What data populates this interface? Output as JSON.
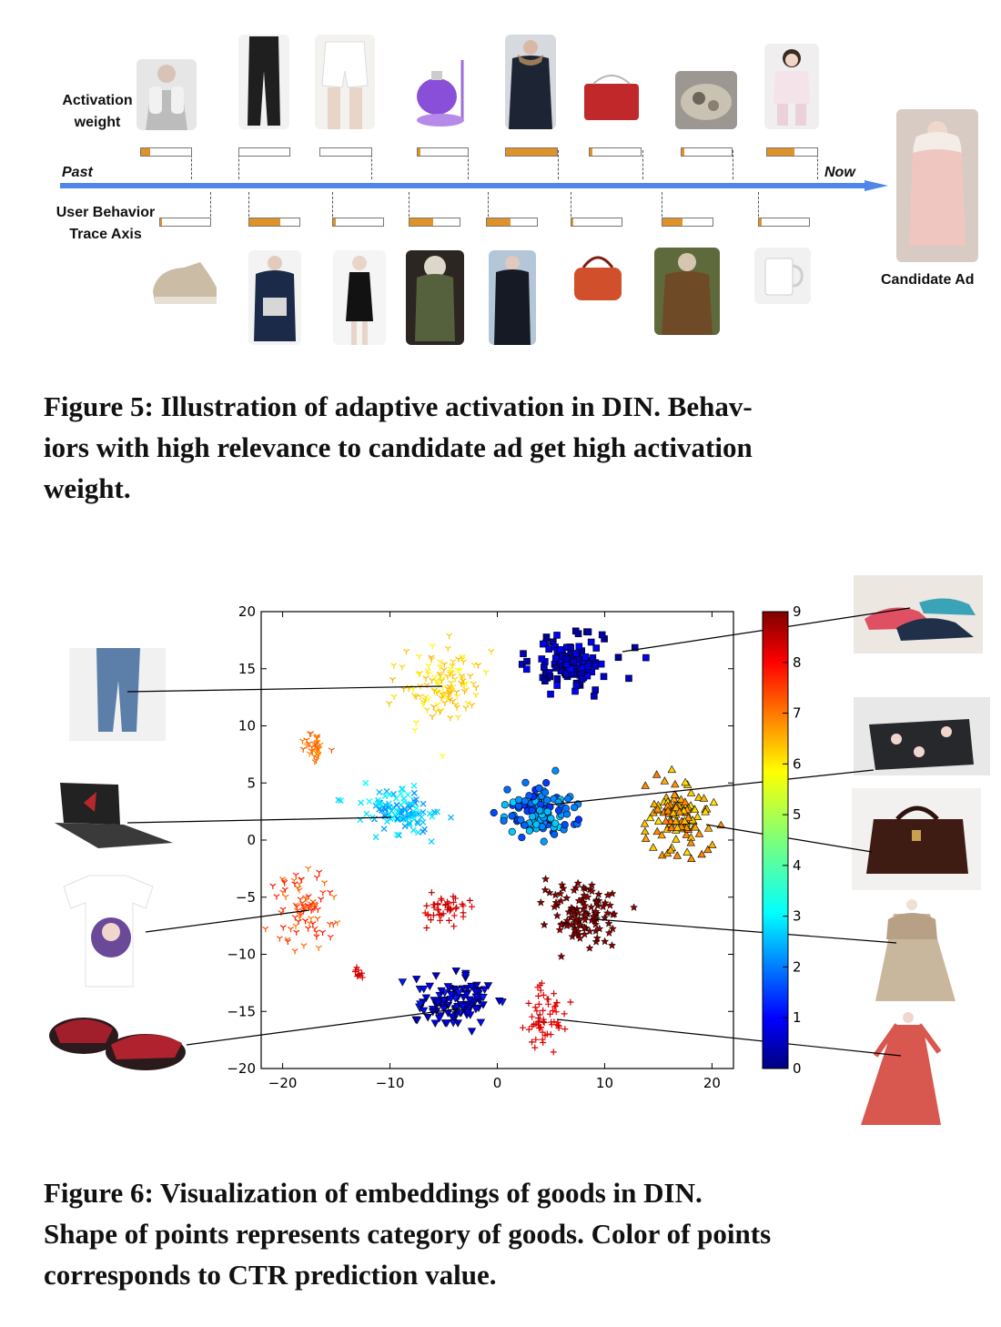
{
  "figure5": {
    "activation_label": "Activation weight",
    "past_label": "Past",
    "now_label": "Now",
    "trace_label": "User Behavior Trace Axis",
    "candidate_label": "Candidate Ad",
    "caption_line1": "Figure 5: Illustration of adaptive activation in DIN. Behav-",
    "caption_line2": "iors with high relevance to candidate ad get high activation",
    "caption_line3": "weight.",
    "top_items": [
      {
        "name": "gloves",
        "weight": 0.18
      },
      {
        "name": "trousers",
        "weight": 0.0
      },
      {
        "name": "shorts",
        "weight": 0.0
      },
      {
        "name": "garment-steamer",
        "weight": 0.05
      },
      {
        "name": "down-coat",
        "weight": 1.0
      },
      {
        "name": "red-handbag",
        "weight": 0.05
      },
      {
        "name": "tea-set",
        "weight": 0.05
      },
      {
        "name": "kids-pajamas",
        "weight": 0.55
      }
    ],
    "bottom_items": [
      {
        "name": "sneakers",
        "weight": 0.04
      },
      {
        "name": "puffer-jacket",
        "weight": 0.62
      },
      {
        "name": "black-dress",
        "weight": 0.06
      },
      {
        "name": "parka",
        "weight": 0.48
      },
      {
        "name": "long-down-coat",
        "weight": 0.48
      },
      {
        "name": "orange-handbag",
        "weight": 0.04
      },
      {
        "name": "leather-jacket",
        "weight": 0.4
      },
      {
        "name": "mug",
        "weight": 0.05
      }
    ]
  },
  "figure6": {
    "caption_line1": "Figure 6: Visualization of embeddings of goods in DIN.",
    "caption_line2": "Shape of points represents category of goods. Color of points",
    "caption_line3": "corresponds to CTR prediction value.",
    "side_images": [
      "jeans",
      "sneakers",
      "laptop",
      "floral-clutch",
      "leather-bag",
      "t-shirt",
      "kids-coat",
      "slippers",
      "floral-dress"
    ]
  },
  "chart_data": {
    "type": "scatter",
    "xlim": [
      -22,
      22
    ],
    "ylim": [
      -20,
      20
    ],
    "x_ticks": [
      -20,
      -10,
      0,
      10,
      20
    ],
    "y_ticks": [
      20,
      15,
      10,
      5,
      0,
      -5,
      -10,
      -15,
      -20
    ],
    "colorbar": {
      "min": 0,
      "max": 9,
      "ticks": [
        0,
        1,
        2,
        3,
        4,
        5,
        6,
        7,
        8,
        9
      ],
      "colormap": "jet"
    },
    "clusters": [
      {
        "category": "shoes",
        "marker": "square",
        "center": [
          7,
          15.5
        ],
        "spread": [
          3.2,
          2.2
        ],
        "n": 120,
        "ctr_range": [
          0.2,
          1.2
        ]
      },
      {
        "category": "jeans",
        "marker": "tri",
        "center": [
          -5,
          13.5
        ],
        "spread": [
          3.5,
          2.6
        ],
        "n": 120,
        "ctr_range": [
          5.6,
          6.4
        ]
      },
      {
        "category": "tshirt-upper",
        "marker": "tri",
        "center": [
          -17,
          8
        ],
        "spread": [
          0.9,
          1.2
        ],
        "n": 35,
        "ctr_range": [
          6.5,
          7.2
        ]
      },
      {
        "category": "laptop",
        "marker": "x",
        "center": [
          -9,
          2.5
        ],
        "spread": [
          3.2,
          2.0
        ],
        "n": 110,
        "ctr_range": [
          2.3,
          3.4
        ]
      },
      {
        "category": "clutch",
        "marker": "circle",
        "center": [
          4,
          2.5
        ],
        "spread": [
          3.0,
          2.0
        ],
        "n": 110,
        "ctr_range": [
          1.5,
          3.0
        ]
      },
      {
        "category": "leather-bag",
        "marker": "triangle",
        "center": [
          17,
          2
        ],
        "spread": [
          2.8,
          2.6
        ],
        "n": 110,
        "ctr_range": [
          5.8,
          6.8
        ]
      },
      {
        "category": "t-shirt",
        "marker": "tri",
        "center": [
          -18,
          -6
        ],
        "spread": [
          2.5,
          3.0
        ],
        "n": 80,
        "ctr_range": [
          6.8,
          7.8
        ]
      },
      {
        "category": "cross-mid",
        "marker": "plus",
        "center": [
          -5,
          -6
        ],
        "spread": [
          2.3,
          1.3
        ],
        "n": 45,
        "ctr_range": [
          8.0,
          8.6
        ]
      },
      {
        "category": "cross-small",
        "marker": "plus",
        "center": [
          -13,
          -11.5
        ],
        "spread": [
          0.5,
          0.8
        ],
        "n": 10,
        "ctr_range": [
          8.1,
          8.5
        ]
      },
      {
        "category": "kids-coat",
        "marker": "star",
        "center": [
          8,
          -6.5
        ],
        "spread": [
          3.2,
          2.3
        ],
        "n": 110,
        "ctr_range": [
          8.7,
          9.0
        ]
      },
      {
        "category": "slippers",
        "marker": "triangle-down",
        "center": [
          -4,
          -14
        ],
        "spread": [
          3.0,
          2.0
        ],
        "n": 110,
        "ctr_range": [
          0.6,
          1.4
        ]
      },
      {
        "category": "floral-dress",
        "marker": "plus",
        "center": [
          4.5,
          -15.5
        ],
        "spread": [
          1.8,
          2.5
        ],
        "n": 60,
        "ctr_range": [
          7.9,
          8.5
        ]
      }
    ]
  }
}
